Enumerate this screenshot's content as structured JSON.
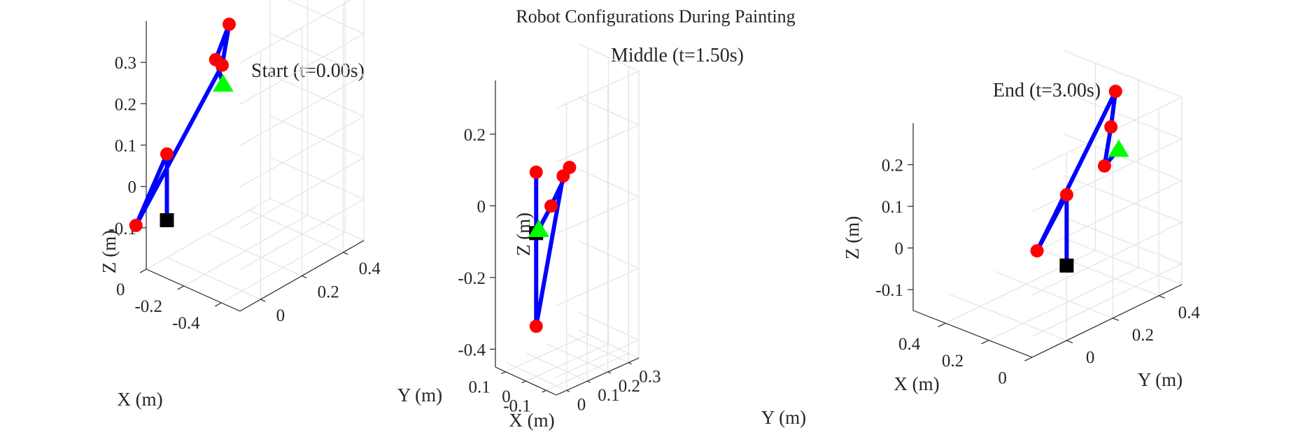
{
  "figure_title": "Robot Configurations During Painting",
  "colors": {
    "link": "#0000ff",
    "joint": "#ff0000",
    "base": "#000000",
    "end_effector": "#00ff00",
    "grid": "#e3e3e3",
    "axis": "#262626"
  },
  "chart_data": [
    {
      "type": "line3d",
      "title": "Start (t=0.00s)",
      "xlabel": "X (m)",
      "ylabel": "Y (m)",
      "zlabel": "Z (m)",
      "xticks": [
        {
          "v": -0.4,
          "label": "-0.4"
        },
        {
          "v": -0.2,
          "label": "-0.2"
        },
        {
          "v": 0,
          "label": "0"
        }
      ],
      "yticks": [
        {
          "v": 0,
          "label": "0"
        },
        {
          "v": 0.2,
          "label": "0.2"
        },
        {
          "v": 0.4,
          "label": "0.4"
        }
      ],
      "zticks": [
        {
          "v": -0.1,
          "label": "-0.1"
        },
        {
          "v": 0,
          "label": "0"
        },
        {
          "v": 0.1,
          "label": "0.1"
        },
        {
          "v": 0.2,
          "label": "0.2"
        },
        {
          "v": 0.3,
          "label": "0.3"
        }
      ],
      "grid": true,
      "base": [
        0,
        0,
        -0.11
      ],
      "joints": [
        [
          0,
          0,
          0.05
        ],
        [
          0,
          -0.15,
          -0.08
        ],
        [
          -0.35,
          -0.05,
          0.35
        ],
        [
          -0.2,
          0.12,
          0.37
        ],
        [
          -0.15,
          0.1,
          0.28
        ]
      ],
      "end_effector": [
        -0.3,
        0,
        0.28
      ]
    },
    {
      "type": "line3d",
      "title": "Middle (t=1.50s)",
      "xlabel": "X (m)",
      "ylabel": "Y (m)",
      "zlabel": "Z (m)",
      "xticks": [
        {
          "v": -0.1,
          "label": "-0.1"
        },
        {
          "v": 0,
          "label": "0"
        },
        {
          "v": 0.1,
          "label": "0.1"
        }
      ],
      "yticks": [
        {
          "v": 0,
          "label": "0"
        },
        {
          "v": 0.1,
          "label": "0.1"
        },
        {
          "v": 0.2,
          "label": "0.2"
        },
        {
          "v": 0.3,
          "label": "0.3"
        }
      ],
      "zticks": [
        {
          "v": -0.4,
          "label": "-0.4"
        },
        {
          "v": -0.2,
          "label": "-0.2"
        },
        {
          "v": 0,
          "label": "0"
        },
        {
          "v": 0.2,
          "label": "0.2"
        }
      ],
      "grid": true,
      "base": [
        0,
        0,
        -0.05
      ],
      "joints": [
        [
          0,
          0,
          0.12
        ],
        [
          0,
          0,
          -0.31
        ],
        [
          0.05,
          0.18,
          0.05
        ],
        [
          0.1,
          0.26,
          0.04
        ],
        [
          0.13,
          0.2,
          -0.06
        ]
      ],
      "end_effector": [
        0.15,
        0.16,
        -0.12
      ]
    },
    {
      "type": "line3d",
      "title": "End (t=3.00s)",
      "xlabel": "X (m)",
      "ylabel": "Y (m)",
      "zlabel": "Z (m)",
      "xticks": [
        {
          "v": 0,
          "label": "0"
        },
        {
          "v": 0.2,
          "label": "0.2"
        },
        {
          "v": 0.4,
          "label": "0.4"
        }
      ],
      "yticks": [
        {
          "v": 0,
          "label": "0"
        },
        {
          "v": 0.2,
          "label": "0.2"
        },
        {
          "v": 0.4,
          "label": "0.4"
        }
      ],
      "zticks": [
        {
          "v": -0.1,
          "label": "-0.1"
        },
        {
          "v": 0,
          "label": "0"
        },
        {
          "v": 0.1,
          "label": "0.1"
        },
        {
          "v": 0.2,
          "label": "0.2"
        }
      ],
      "grid": true,
      "base": [
        0,
        0,
        0.03
      ],
      "joints": [
        [
          0,
          0,
          0.2
        ],
        [
          0.35,
          0.2,
          -0.06
        ],
        [
          0.2,
          0.4,
          0.3
        ],
        [
          0.2,
          0.38,
          0.22
        ],
        [
          0.23,
          0.38,
          0.12
        ]
      ],
      "end_effector": [
        0.26,
        0.47,
        0.13
      ]
    }
  ]
}
